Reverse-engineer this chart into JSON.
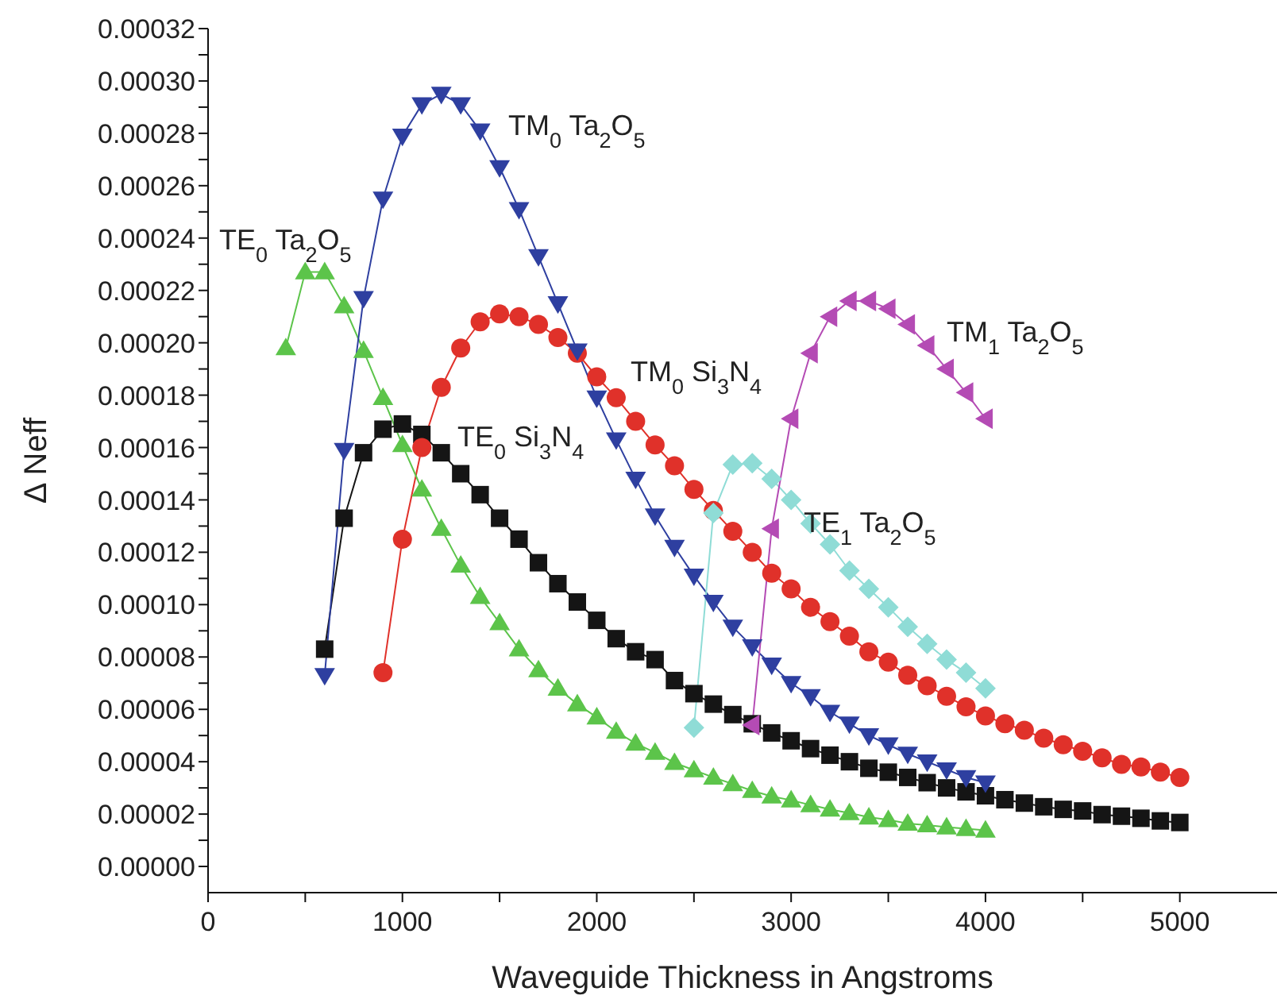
{
  "chart_data": {
    "type": "line",
    "xlabel": "Waveguide Thickness in Angstroms",
    "ylabel": "Δ Neff",
    "xlim": [
      0,
      5500
    ],
    "ylim": [
      -1e-05,
      0.00032
    ],
    "xticks": [
      0,
      {
        "value": 500,
        "label": null
      },
      1000,
      {
        "value": 1500,
        "label": null
      },
      2000,
      {
        "value": 2500,
        "label": null
      },
      3000,
      {
        "value": 3500,
        "label": null
      },
      4000,
      {
        "value": 4500,
        "label": null
      },
      5000
    ],
    "yticks": [
      {
        "value": 0,
        "label": "0.00000"
      },
      {
        "value": 1e-05,
        "label": null
      },
      {
        "value": 2e-05,
        "label": "0.00002"
      },
      {
        "value": 3e-05,
        "label": null
      },
      {
        "value": 4e-05,
        "label": "0.00004"
      },
      {
        "value": 5e-05,
        "label": null
      },
      {
        "value": 6e-05,
        "label": "0.00006"
      },
      {
        "value": 7e-05,
        "label": null
      },
      {
        "value": 8e-05,
        "label": "0.00008"
      },
      {
        "value": 9e-05,
        "label": null
      },
      {
        "value": 0.0001,
        "label": "0.00010"
      },
      {
        "value": 0.00011,
        "label": null
      },
      {
        "value": 0.00012,
        "label": "0.00012"
      },
      {
        "value": 0.00013,
        "label": null
      },
      {
        "value": 0.00014,
        "label": "0.00014"
      },
      {
        "value": 0.00015,
        "label": null
      },
      {
        "value": 0.00016,
        "label": "0.00016"
      },
      {
        "value": 0.00017,
        "label": null
      },
      {
        "value": 0.00018,
        "label": "0.00018"
      },
      {
        "value": 0.00019,
        "label": null
      },
      {
        "value": 0.0002,
        "label": "0.00020"
      },
      {
        "value": 0.00021,
        "label": null
      },
      {
        "value": 0.00022,
        "label": "0.00022"
      },
      {
        "value": 0.00023,
        "label": null
      },
      {
        "value": 0.00024,
        "label": "0.00024"
      },
      {
        "value": 0.00025,
        "label": null
      },
      {
        "value": 0.00026,
        "label": "0.00026"
      },
      {
        "value": 0.00027,
        "label": null
      },
      {
        "value": 0.00028,
        "label": "0.00028"
      },
      {
        "value": 0.00029,
        "label": null
      },
      {
        "value": 0.0003,
        "label": "0.00030"
      },
      {
        "value": 0.00031,
        "label": null
      },
      {
        "value": 0.00032,
        "label": "0.00032"
      }
    ],
    "grid": false,
    "legend": false,
    "line_style": "solid",
    "series": [
      {
        "name": "TE$_{0}$ Si$_{3}$N$_{4}$",
        "color": "#151515",
        "marker": "square",
        "x": [
          600,
          700,
          800,
          900,
          1000,
          1100,
          1200,
          1300,
          1400,
          1500,
          1600,
          1700,
          1800,
          1900,
          2000,
          2100,
          2200,
          2300,
          2400,
          2500,
          2600,
          2700,
          2800,
          2900,
          3000,
          3100,
          3200,
          3300,
          3400,
          3500,
          3600,
          3700,
          3800,
          3900,
          4000,
          4100,
          4200,
          4300,
          4400,
          4500,
          4600,
          4700,
          4800,
          4900,
          5000
        ],
        "values": [
          8.3e-05,
          0.000133,
          0.000158,
          0.000167,
          0.000169,
          0.000165,
          0.000158,
          0.00015,
          0.000142,
          0.000133,
          0.000125,
          0.000116,
          0.000108,
          0.000101,
          9.4e-05,
          8.7e-05,
          8.2e-05,
          7.9e-05,
          7.1e-05,
          6.6e-05,
          6.2e-05,
          5.8e-05,
          5.45e-05,
          5.1e-05,
          4.8e-05,
          4.5e-05,
          4.25e-05,
          4e-05,
          3.75e-05,
          3.6e-05,
          3.4e-05,
          3.2e-05,
          3e-05,
          2.85e-05,
          2.7e-05,
          2.55e-05,
          2.42e-05,
          2.28e-05,
          2.18e-05,
          2.12e-05,
          1.98e-05,
          1.92e-05,
          1.84e-05,
          1.74e-05,
          1.68e-05
        ]
      },
      {
        "name": "TM$_{0}$ Si$_{3}$N$_{4}$",
        "color": "#e0312a",
        "marker": "circle",
        "x": [
          900,
          1000,
          1100,
          1200,
          1300,
          1400,
          1500,
          1600,
          1700,
          1800,
          1900,
          2000,
          2100,
          2200,
          2300,
          2400,
          2500,
          2600,
          2700,
          2800,
          2900,
          3000,
          3100,
          3200,
          3300,
          3400,
          3500,
          3600,
          3700,
          3800,
          3900,
          4000,
          4100,
          4200,
          4300,
          4400,
          4500,
          4600,
          4700,
          4800,
          4900,
          5000
        ],
        "values": [
          7.4e-05,
          0.000125,
          0.00016,
          0.000183,
          0.000198,
          0.000208,
          0.000211,
          0.00021,
          0.000207,
          0.000202,
          0.000196,
          0.000187,
          0.000179,
          0.00017,
          0.000161,
          0.000153,
          0.000144,
          0.000136,
          0.000128,
          0.00012,
          0.000112,
          0.000106,
          9.9e-05,
          9.35e-05,
          8.8e-05,
          8.2e-05,
          7.8e-05,
          7.3e-05,
          6.9e-05,
          6.5e-05,
          6.1e-05,
          5.75e-05,
          5.45e-05,
          5.2e-05,
          4.9e-05,
          4.65e-05,
          4.4e-05,
          4.15e-05,
          3.9e-05,
          3.8e-05,
          3.6e-05,
          3.4e-05
        ]
      },
      {
        "name": "TE$_{0}$ Ta$_{2}$O$_{5}$",
        "color": "#5cc44a",
        "marker": "triangle",
        "x": [
          400,
          500,
          600,
          700,
          800,
          900,
          1000,
          1100,
          1200,
          1300,
          1400,
          1500,
          1600,
          1700,
          1800,
          1900,
          2000,
          2100,
          2200,
          2300,
          2400,
          2500,
          2600,
          2700,
          2800,
          2900,
          3000,
          3100,
          3200,
          3300,
          3400,
          3500,
          3600,
          3700,
          3800,
          3900,
          4000
        ],
        "values": [
          0.000198,
          0.000227,
          0.000227,
          0.000214,
          0.000197,
          0.000179,
          0.000161,
          0.000144,
          0.000129,
          0.000115,
          0.000103,
          9.3e-05,
          8.3e-05,
          7.5e-05,
          6.8e-05,
          6.2e-05,
          5.7e-05,
          5.15e-05,
          4.7e-05,
          4.35e-05,
          3.96e-05,
          3.68e-05,
          3.4e-05,
          3.15e-05,
          2.89e-05,
          2.68e-05,
          2.53e-05,
          2.35e-05,
          2.18e-05,
          2.04e-05,
          1.88e-05,
          1.78e-05,
          1.64e-05,
          1.58e-05,
          1.5e-05,
          1.44e-05,
          1.38e-05
        ]
      },
      {
        "name": "TM$_{0}$ Ta$_{2}$O$_{5}$",
        "color": "#2e3fa0",
        "marker": "triangle-down",
        "x": [
          600,
          700,
          800,
          900,
          1000,
          1100,
          1200,
          1300,
          1400,
          1500,
          1600,
          1700,
          1800,
          1900,
          2000,
          2100,
          2200,
          2300,
          2400,
          2500,
          2600,
          2700,
          2800,
          2900,
          3000,
          3100,
          3200,
          3300,
          3400,
          3500,
          3600,
          3700,
          3800,
          3900,
          4000
        ],
        "values": [
          7.3e-05,
          0.000159,
          0.000217,
          0.000255,
          0.000279,
          0.000291,
          0.000295,
          0.000291,
          0.000281,
          0.000267,
          0.000251,
          0.000233,
          0.000215,
          0.000197,
          0.000179,
          0.000163,
          0.000148,
          0.000134,
          0.000122,
          0.000111,
          0.000101,
          9.15e-05,
          8.4e-05,
          7.7e-05,
          7e-05,
          6.5e-05,
          5.9e-05,
          5.45e-05,
          5e-05,
          4.65e-05,
          4.3e-05,
          4e-05,
          3.7e-05,
          3.4e-05,
          3.2e-05
        ]
      },
      {
        "name": "TE$_{1}$ Ta$_{2}$O$_{5}$",
        "color": "#8fdcd6",
        "marker": "diamond",
        "x": [
          2500,
          2600,
          2700,
          2800,
          2900,
          3000,
          3100,
          3200,
          3300,
          3400,
          3500,
          3600,
          3700,
          3800,
          3900,
          4000
        ],
        "values": [
          5.3e-05,
          0.000135,
          0.0001535,
          0.000154,
          0.000148,
          0.00014,
          0.000131,
          0.000123,
          0.000113,
          0.000106,
          9.9e-05,
          9.15e-05,
          8.5e-05,
          7.9e-05,
          7.4e-05,
          6.8e-05
        ]
      },
      {
        "name": "TM$_{1}$ Ta$_{2}$O$_{5}$",
        "color": "#b44bb4",
        "marker": "triangle-left",
        "x": [
          2800,
          2900,
          3000,
          3100,
          3200,
          3300,
          3400,
          3500,
          3600,
          3700,
          3800,
          3900,
          4000
        ],
        "values": [
          5.4e-05,
          0.000129,
          0.000171,
          0.000196,
          0.00021,
          0.000216,
          0.000216,
          0.000213,
          0.000207,
          0.000199,
          0.00019,
          0.000181,
          0.000171
        ]
      }
    ]
  }
}
